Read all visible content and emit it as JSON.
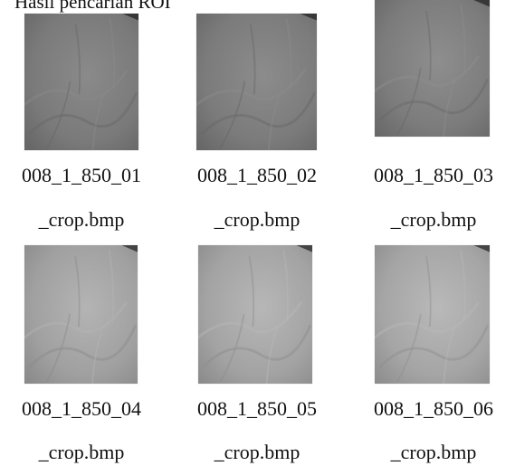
{
  "document": {
    "title": "Hasil pencarian ROI",
    "images": [
      {
        "name_line1": "008_1_850_01",
        "name_line2": "_crop.bmp",
        "tone": "#7a7a7a",
        "tone_light": "#8a8a8a",
        "tone_dark": "#666666"
      },
      {
        "name_line1": "008_1_850_02",
        "name_line2": "_crop.bmp",
        "tone": "#7b7b7b",
        "tone_light": "#8c8c8c",
        "tone_dark": "#676767"
      },
      {
        "name_line1": "008_1_850_03",
        "name_line2": "_crop.bmp",
        "tone": "#7c7c7c",
        "tone_light": "#8e8e8e",
        "tone_dark": "#686868"
      },
      {
        "name_line1": "008_1_850_04",
        "name_line2": "_crop.bmp",
        "tone": "#a0a0a0",
        "tone_light": "#b4b4b4",
        "tone_dark": "#8a8a8a"
      },
      {
        "name_line1": "008_1_850_05",
        "name_line2": "_crop.bmp",
        "tone": "#a3a3a3",
        "tone_light": "#b7b7b7",
        "tone_dark": "#8c8c8c"
      },
      {
        "name_line1": "008_1_850_06",
        "name_line2": "_crop.bmp",
        "tone": "#a5a5a5",
        "tone_light": "#b9b9b9",
        "tone_dark": "#8e8e8e"
      }
    ]
  }
}
